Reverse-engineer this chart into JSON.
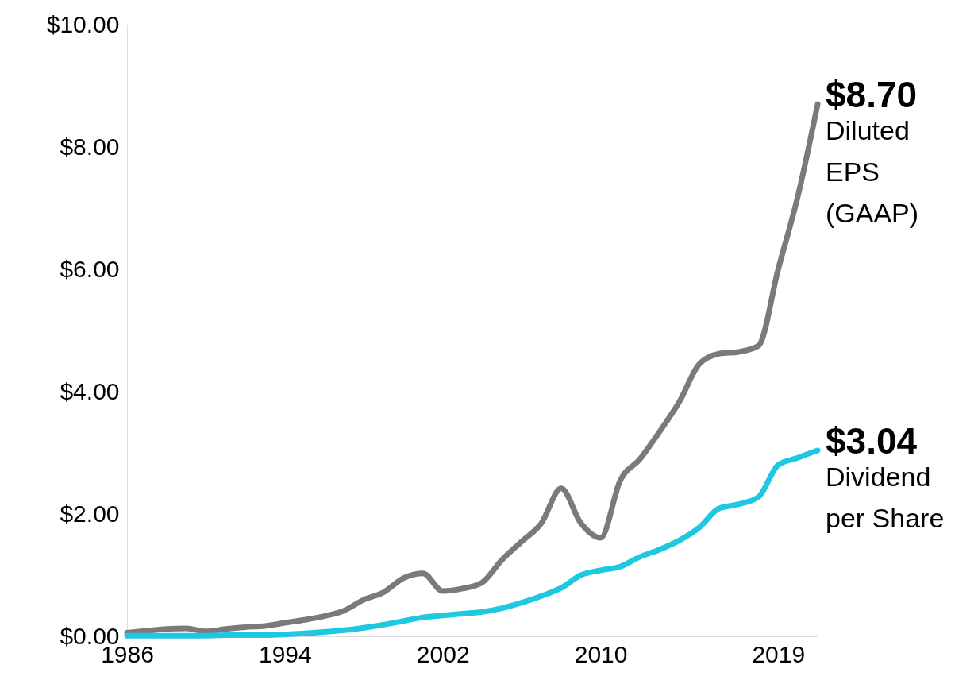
{
  "chart_data": {
    "type": "line",
    "x": [
      1986,
      1987,
      1988,
      1989,
      1990,
      1991,
      1992,
      1993,
      1994,
      1995,
      1996,
      1997,
      1998,
      1999,
      2000,
      2001,
      2002,
      2003,
      2004,
      2005,
      2006,
      2007,
      2008,
      2009,
      2010,
      2011,
      2012,
      2013,
      2014,
      2015,
      2016,
      2017,
      2018,
      2019,
      2020,
      2021
    ],
    "series": [
      {
        "name": "Diluted\nEPS\n(GAAP)",
        "color": "#7a7a7a",
        "values": [
          0.06,
          0.09,
          0.12,
          0.13,
          0.08,
          0.12,
          0.15,
          0.17,
          0.22,
          0.27,
          0.33,
          0.42,
          0.6,
          0.72,
          0.95,
          1.03,
          0.74,
          0.78,
          0.88,
          1.25,
          1.55,
          1.85,
          2.42,
          1.85,
          1.61,
          2.55,
          2.9,
          3.35,
          3.84,
          4.45,
          4.62,
          4.65,
          4.75,
          6.0,
          7.2,
          8.7
        ]
      },
      {
        "name": "Dividend\nper Share",
        "color": "#1ec8e0",
        "values": [
          0.01,
          0.01,
          0.01,
          0.01,
          0.01,
          0.02,
          0.02,
          0.02,
          0.03,
          0.05,
          0.07,
          0.1,
          0.14,
          0.19,
          0.25,
          0.31,
          0.34,
          0.37,
          0.4,
          0.46,
          0.55,
          0.66,
          0.79,
          1.0,
          1.08,
          1.14,
          1.3,
          1.42,
          1.57,
          1.78,
          2.09,
          2.16,
          2.28,
          2.8,
          2.92,
          3.04
        ]
      }
    ],
    "annotations": [
      {
        "text": "$8.70",
        "x": 2021,
        "y": 8.7
      },
      {
        "text": "$3.04",
        "x": 2021,
        "y": 3.04
      }
    ],
    "xlim": [
      1986,
      2021
    ],
    "xticks": [
      1986,
      1994,
      2002,
      2010,
      2019
    ],
    "ylim": [
      0,
      10
    ],
    "yticks": [
      {
        "value": 0,
        "label": "$0.00"
      },
      {
        "value": 2,
        "label": "$2.00"
      },
      {
        "value": 4,
        "label": "$4.00"
      },
      {
        "value": 6,
        "label": "$6.00"
      },
      {
        "value": 8,
        "label": "$8.00"
      },
      {
        "value": 10,
        "label": "$10.00"
      }
    ],
    "grid": false,
    "marker": "none",
    "line_style": "solid"
  }
}
